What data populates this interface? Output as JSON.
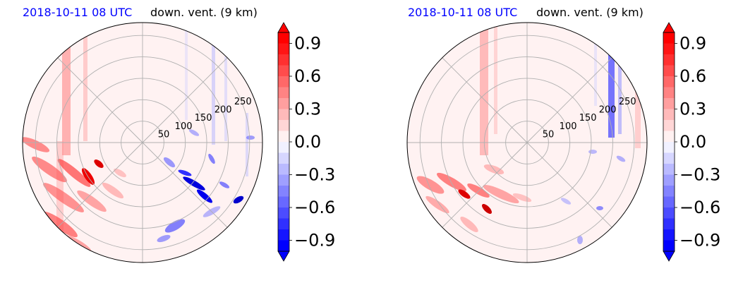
{
  "colors": {
    "positive": "#ff0000",
    "negative": "#0000ff",
    "zero": "#ffffff",
    "grid": "#b0b0b0",
    "date_text": "#0000ff"
  },
  "chart_data": [
    {
      "type": "heatmap",
      "projection": "polar",
      "title_left": "2018-10-11 08 UTC",
      "title_right": "down. vent. (9 km)",
      "radial_ticks": [
        50,
        100,
        150,
        200,
        250
      ],
      "radial_range": [
        0,
        280
      ],
      "angular_gridline_step_deg": 45,
      "grid": true,
      "colormap": "bwr",
      "colorbar": {
        "ticks": [
          "0.9",
          "0.6",
          "0.3",
          "0.0",
          "−0.3",
          "−0.6",
          "−0.9"
        ],
        "range": [
          -1.0,
          1.0
        ],
        "levels": 20,
        "extend": "both"
      }
    },
    {
      "type": "heatmap",
      "projection": "polar",
      "title_left": "2018-10-11 08 UTC",
      "title_right": "down. vent. (9 km)",
      "radial_ticks": [
        50,
        100,
        150,
        200,
        250
      ],
      "radial_range": [
        0,
        280
      ],
      "angular_gridline_step_deg": 45,
      "grid": true,
      "colormap": "bwr",
      "colorbar": {
        "ticks": [
          "0.9",
          "0.6",
          "0.3",
          "0.0",
          "−0.3",
          "−0.6",
          "−0.9"
        ],
        "range": [
          -1.0,
          1.0
        ],
        "levels": 20,
        "extend": "both"
      }
    }
  ]
}
